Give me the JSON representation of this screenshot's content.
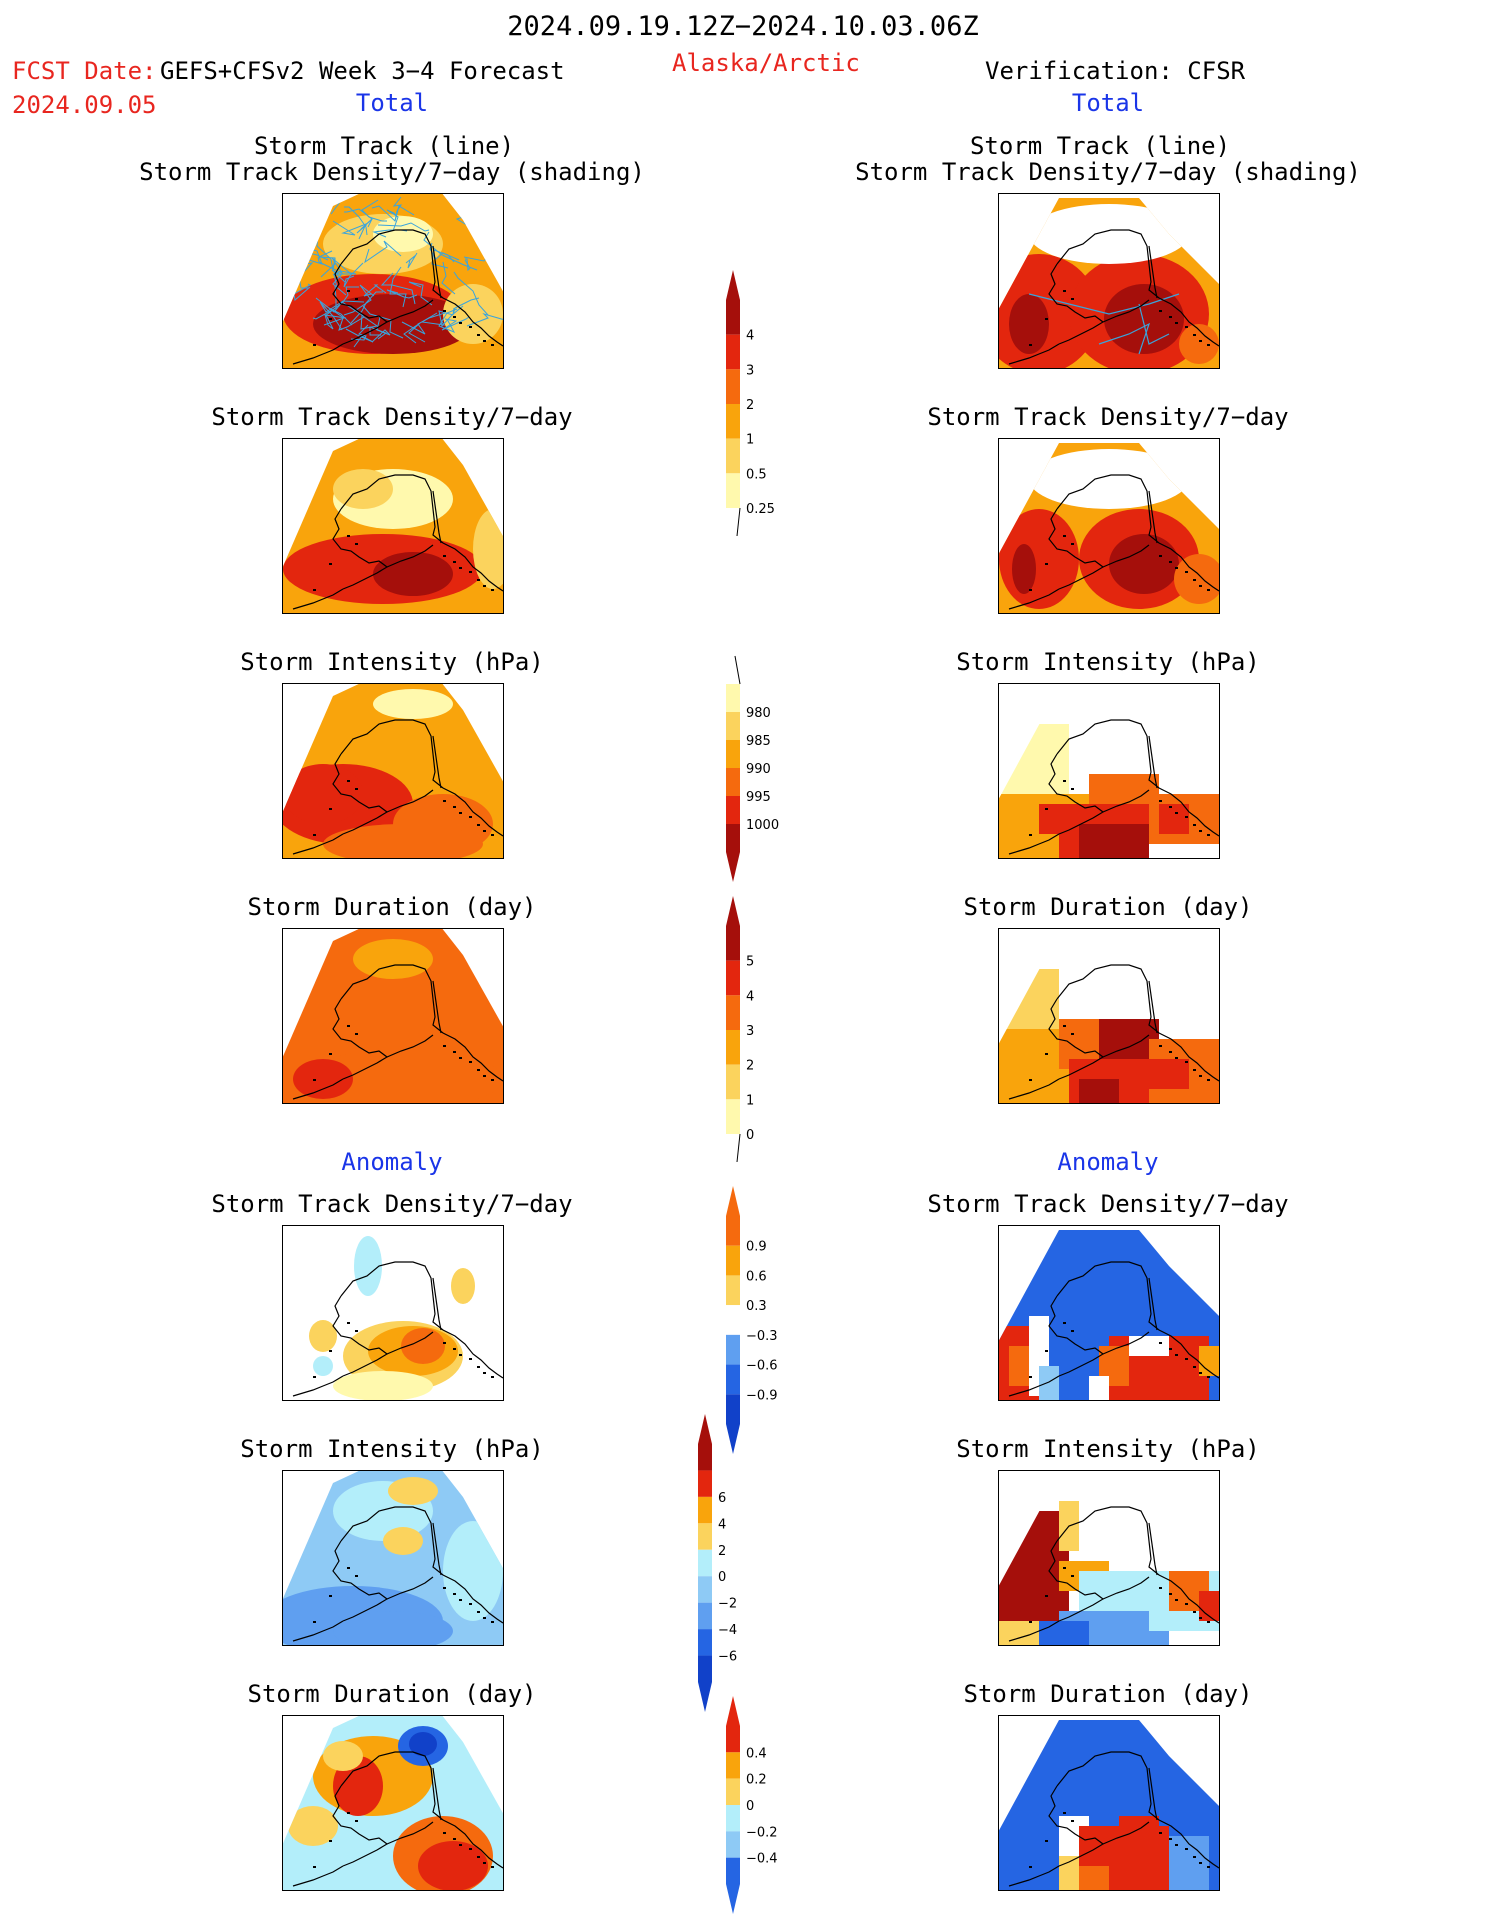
{
  "header": {
    "date_range": "2024.09.19.12Z−2024.10.03.06Z",
    "fcst_date_label": "FCST Date:",
    "fcst_date_value": "2024.09.05",
    "forecast_title": "GEFS+CFSv2 Week 3−4 Forecast",
    "region": "Alaska/Arctic",
    "verification": "Verification: CFSR",
    "left_total": "Total",
    "right_total": "Total"
  },
  "section_labels": {
    "left_anomaly": "Anomaly",
    "right_anomaly": "Anomaly"
  },
  "panel_titles": {
    "track_line": "Storm Track (line)",
    "track_shading": "Storm Track Density/7−day (shading)",
    "density": "Storm Track Density/7−day",
    "intensity": "Storm Intensity (hPa)",
    "duration": "Storm Duration (day)"
  },
  "colorbars": {
    "density_total": [
      "0.25",
      "0.5",
      "1",
      "2",
      "3",
      "4"
    ],
    "intensity_total": [
      "980",
      "985",
      "990",
      "995",
      "1000"
    ],
    "duration_total": [
      "0",
      "1",
      "2",
      "3",
      "4",
      "5"
    ],
    "density_anom": [
      "−0.9",
      "−0.6",
      "−0.3",
      "0.3",
      "0.6",
      "0.9"
    ],
    "intensity_anom": [
      "−6",
      "−4",
      "−2",
      "0",
      "2",
      "4",
      "6"
    ],
    "duration_anom": [
      "−0.4",
      "−0.2",
      "0",
      "0.2",
      "0.4"
    ]
  },
  "colors": {
    "warm": [
      "#fff9ad",
      "#fbd35d",
      "#f9a40c",
      "#f56a0e",
      "#e3260e",
      "#a50f0b"
    ],
    "cool": [
      "#b3eefa",
      "#8ecaf5",
      "#5f9ff0",
      "#2565e3",
      "#1141c9"
    ],
    "track_line": "#3aa4dc"
  }
}
